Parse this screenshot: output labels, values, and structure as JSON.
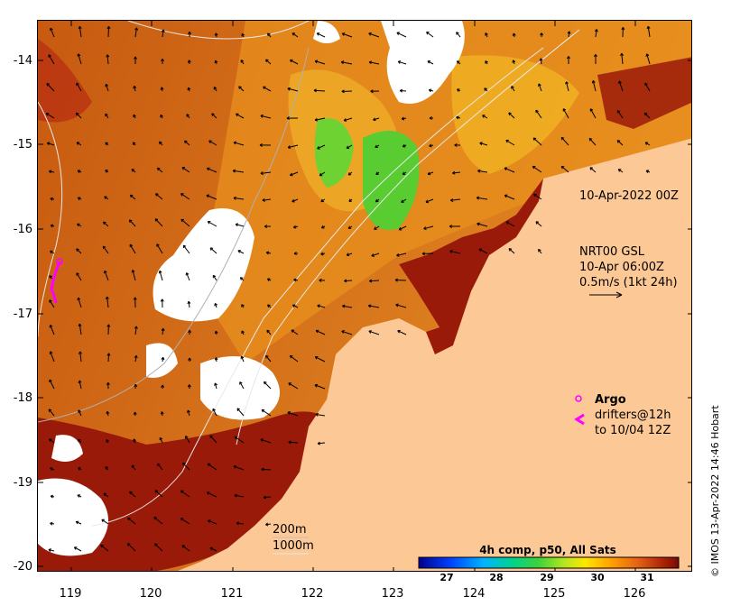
{
  "map": {
    "y_ticks": [
      "-14",
      "-15",
      "-16",
      "-17",
      "-18",
      "-19",
      "-20"
    ],
    "x_ticks": [
      "119",
      "120",
      "121",
      "122",
      "123",
      "124",
      "125",
      "126"
    ],
    "date_label": "10-Apr-2022 00Z",
    "current_label_line1": "NRT00 GSL",
    "current_label_line2": "10-Apr 06:00Z",
    "current_label_line3": "0.5m/s (1kt 24h)",
    "argo_label": "Argo",
    "drifters_line1": "drifters@12h",
    "drifters_line2": "to 10/04 12Z",
    "contour_200": "200m",
    "contour_1000": "1000m",
    "colorbar_title": "4h comp, p50, All Sats",
    "colorbar_ticks": [
      "27",
      "28",
      "29",
      "30",
      "31"
    ],
    "credit": "© IMOS 13-Apr-2022 14:46 Hobart"
  },
  "colors": {
    "land": "#fcc896",
    "no_data": "#ffffff",
    "argo": "#ff00ff",
    "sst_dark_red": "#9a1a0a",
    "sst_orange": "#d66a10",
    "sst_yellow": "#f0b020",
    "sst_green": "#3fd23a"
  }
}
